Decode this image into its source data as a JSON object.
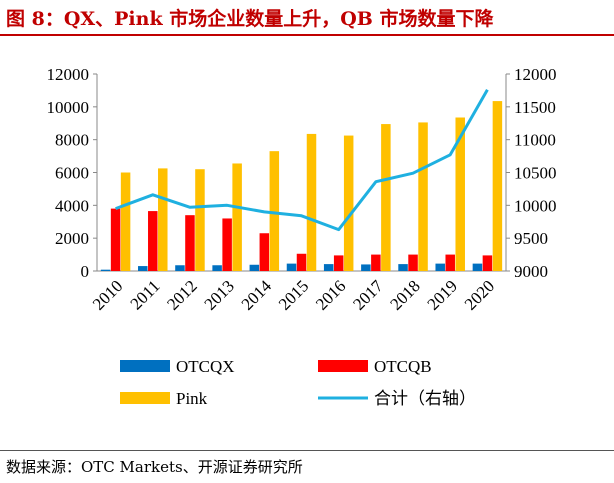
{
  "title": "图 8：QX、Pink 市场企业数量上升，QB 市场数量下降",
  "source": "数据来源：OTC Markets、开源证券研究所",
  "chart_data": {
    "type": "bar",
    "categories": [
      "2010",
      "2011",
      "2012",
      "2013",
      "2014",
      "2015",
      "2016",
      "2017",
      "2018",
      "2019",
      "2020"
    ],
    "series": [
      {
        "name": "OTCQX",
        "type": "bar",
        "axis": "left",
        "color": "#0070c0",
        "values": [
          80,
          300,
          350,
          350,
          380,
          450,
          420,
          400,
          420,
          450,
          450
        ]
      },
      {
        "name": "OTCQB",
        "type": "bar",
        "axis": "left",
        "color": "#ff0000",
        "values": [
          3800,
          3650,
          3400,
          3200,
          2300,
          1050,
          950,
          1000,
          1000,
          1000,
          950
        ]
      },
      {
        "name": "Pink",
        "type": "bar",
        "axis": "left",
        "color": "#ffc000",
        "values": [
          6000,
          6250,
          6200,
          6550,
          7300,
          8350,
          8250,
          8950,
          9050,
          9350,
          10350
        ]
      },
      {
        "name": "合计（右轴）",
        "type": "line",
        "axis": "right",
        "color": "#1fb0e0",
        "values": [
          9950,
          10160,
          9970,
          10000,
          9900,
          9840,
          9630,
          10360,
          10490,
          10770,
          11760
        ]
      }
    ],
    "y_left": {
      "min": 0,
      "max": 12000,
      "ticks": [
        0,
        2000,
        4000,
        6000,
        8000,
        10000,
        12000
      ]
    },
    "y_right": {
      "min": 9000,
      "max": 12000,
      "ticks": [
        9000,
        9500,
        10000,
        10500,
        11000,
        11500,
        12000
      ]
    },
    "legend_position": "bottom",
    "grid": false
  }
}
